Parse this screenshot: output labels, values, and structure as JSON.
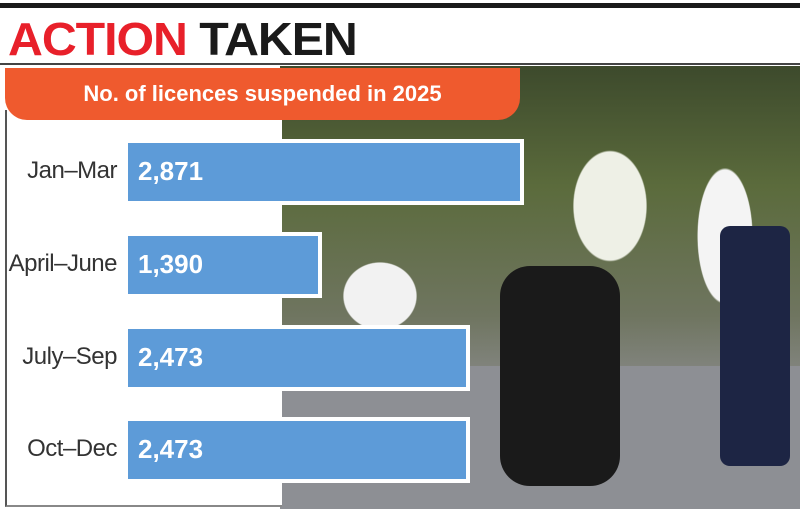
{
  "header": {
    "title_red": "ACTION",
    "title_black": "TAKEN"
  },
  "chart_data": {
    "type": "bar",
    "orientation": "horizontal",
    "title": "No. of licences suspended in 2025",
    "categories": [
      "Jan–Mar",
      "April–June",
      "July–Sep",
      "Oct–Dec"
    ],
    "values": [
      2871,
      1390,
      2473,
      2473
    ],
    "value_labels": [
      "2,871",
      "1,390",
      "2,473",
      "2,473"
    ],
    "bar_color": "#5d9bd8",
    "banner_color": "#ef5a2e",
    "title_color": "#e8202a",
    "grid": false
  }
}
